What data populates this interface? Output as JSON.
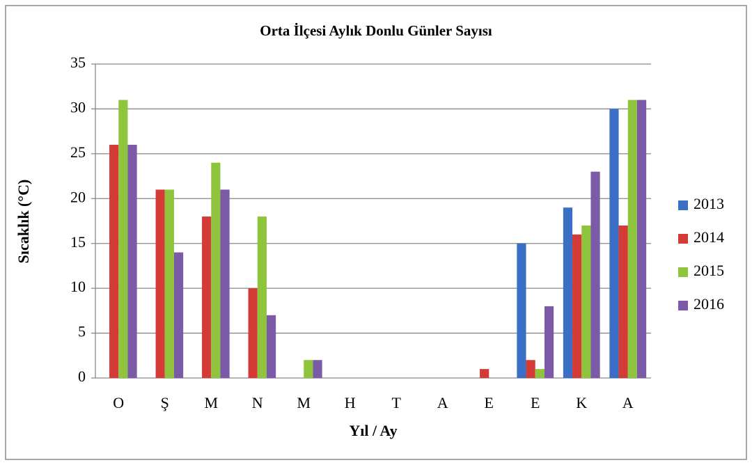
{
  "chart_data": {
    "type": "bar",
    "title": "Orta İlçesi Aylık Donlu Günler Sayısı",
    "x_label": "Yıl / Ay",
    "y_label": "Sıcaklık (°C)",
    "categories": [
      "O",
      "Ş",
      "M",
      "N",
      "M",
      "H",
      "T",
      "A",
      "E",
      "E",
      "K",
      "A"
    ],
    "series": [
      {
        "name": "2013",
        "color": "#3b6fc5",
        "values": [
          0,
          0,
          0,
          0,
          0,
          0,
          0,
          0,
          0,
          15,
          19,
          30
        ]
      },
      {
        "name": "2014",
        "color": "#d43b36",
        "values": [
          26,
          21,
          18,
          10,
          0,
          0,
          0,
          0,
          1,
          2,
          16,
          17
        ]
      },
      {
        "name": "2015",
        "color": "#8fc43d",
        "values": [
          31,
          21,
          24,
          18,
          2,
          0,
          0,
          0,
          0,
          1,
          17,
          31
        ]
      },
      {
        "name": "2016",
        "color": "#7b5aa7",
        "values": [
          26,
          14,
          21,
          7,
          2,
          0,
          0,
          0,
          0,
          8,
          23,
          31
        ]
      }
    ],
    "ylim": [
      0,
      35
    ],
    "yticks": [
      0,
      5,
      10,
      15,
      20,
      25,
      30,
      35
    ],
    "grid": true,
    "legend": "right"
  }
}
